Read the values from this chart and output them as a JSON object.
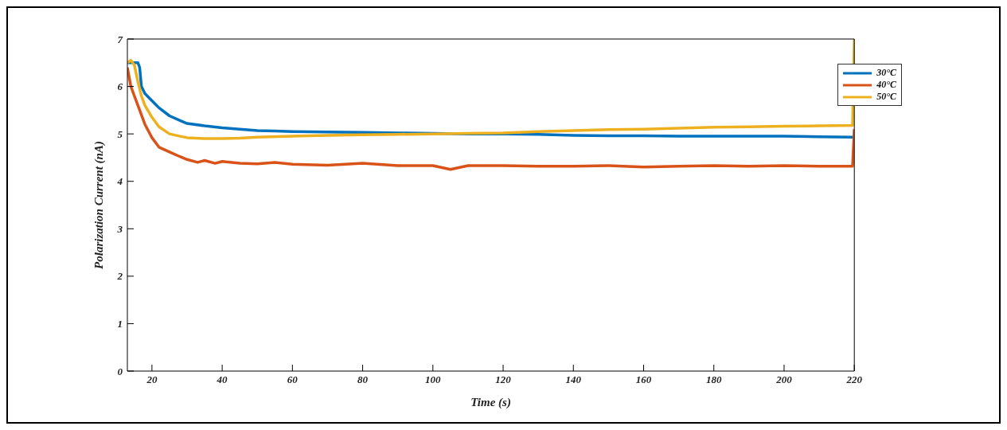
{
  "chart_data": {
    "type": "line",
    "xlabel": "Time (s)",
    "ylabel": "Polarization Current (nA)",
    "xlim": [
      13,
      220
    ],
    "xticks": [
      20,
      40,
      60,
      80,
      100,
      120,
      140,
      160,
      180,
      200,
      220
    ],
    "ylim": [
      0,
      7
    ],
    "yticks": [
      0,
      1,
      2,
      3,
      4,
      5,
      6,
      7
    ],
    "grid": false,
    "legend": "top right",
    "marker": "none",
    "line_style": "solid",
    "series": [
      {
        "name": "30°C",
        "color": "#0072bd",
        "x": [
          13,
          14,
          15,
          16,
          16.5,
          17,
          18,
          20,
          22,
          25,
          28,
          30,
          35,
          40,
          45,
          50,
          55,
          60,
          70,
          80,
          90,
          100,
          110,
          120,
          130,
          140,
          150,
          160,
          170,
          180,
          190,
          200,
          210,
          219.5
        ],
        "values": [
          6.5,
          6.5,
          6.5,
          6.5,
          6.4,
          6.0,
          5.85,
          5.7,
          5.55,
          5.38,
          5.28,
          5.22,
          5.17,
          5.13,
          5.1,
          5.07,
          5.06,
          5.05,
          5.04,
          5.03,
          5.02,
          5.01,
          5.0,
          5.0,
          4.99,
          4.97,
          4.96,
          4.96,
          4.95,
          4.95,
          4.95,
          4.95,
          4.94,
          4.93
        ]
      },
      {
        "name": "40°C",
        "color": "#d95319",
        "x": [
          13,
          14,
          15,
          16,
          18,
          20,
          22,
          25,
          28,
          30,
          33,
          35,
          38,
          40,
          45,
          50,
          55,
          60,
          70,
          80,
          90,
          100,
          105,
          110,
          120,
          130,
          140,
          150,
          160,
          170,
          180,
          190,
          200,
          210,
          219.5,
          220
        ],
        "values": [
          6.4,
          6.0,
          5.8,
          5.6,
          5.2,
          4.92,
          4.72,
          4.62,
          4.52,
          4.46,
          4.4,
          4.44,
          4.38,
          4.42,
          4.38,
          4.37,
          4.4,
          4.36,
          4.34,
          4.38,
          4.33,
          4.33,
          4.25,
          4.33,
          4.33,
          4.32,
          4.32,
          4.33,
          4.3,
          4.32,
          4.33,
          4.32,
          4.33,
          4.32,
          4.32,
          5.1
        ]
      },
      {
        "name": "50°C",
        "color": "#edb120",
        "x": [
          13,
          14,
          15,
          16,
          17,
          18,
          20,
          22,
          25,
          28,
          30,
          35,
          40,
          45,
          50,
          60,
          70,
          80,
          90,
          100,
          110,
          120,
          130,
          140,
          150,
          160,
          170,
          180,
          190,
          200,
          210,
          219.5,
          220
        ],
        "values": [
          6.5,
          6.55,
          6.45,
          6.1,
          5.8,
          5.6,
          5.35,
          5.15,
          5.0,
          4.95,
          4.92,
          4.9,
          4.9,
          4.91,
          4.93,
          4.95,
          4.97,
          4.98,
          4.99,
          5.0,
          5.01,
          5.02,
          5.05,
          5.07,
          5.09,
          5.1,
          5.12,
          5.14,
          5.15,
          5.16,
          5.17,
          5.18,
          7
        ]
      }
    ]
  }
}
